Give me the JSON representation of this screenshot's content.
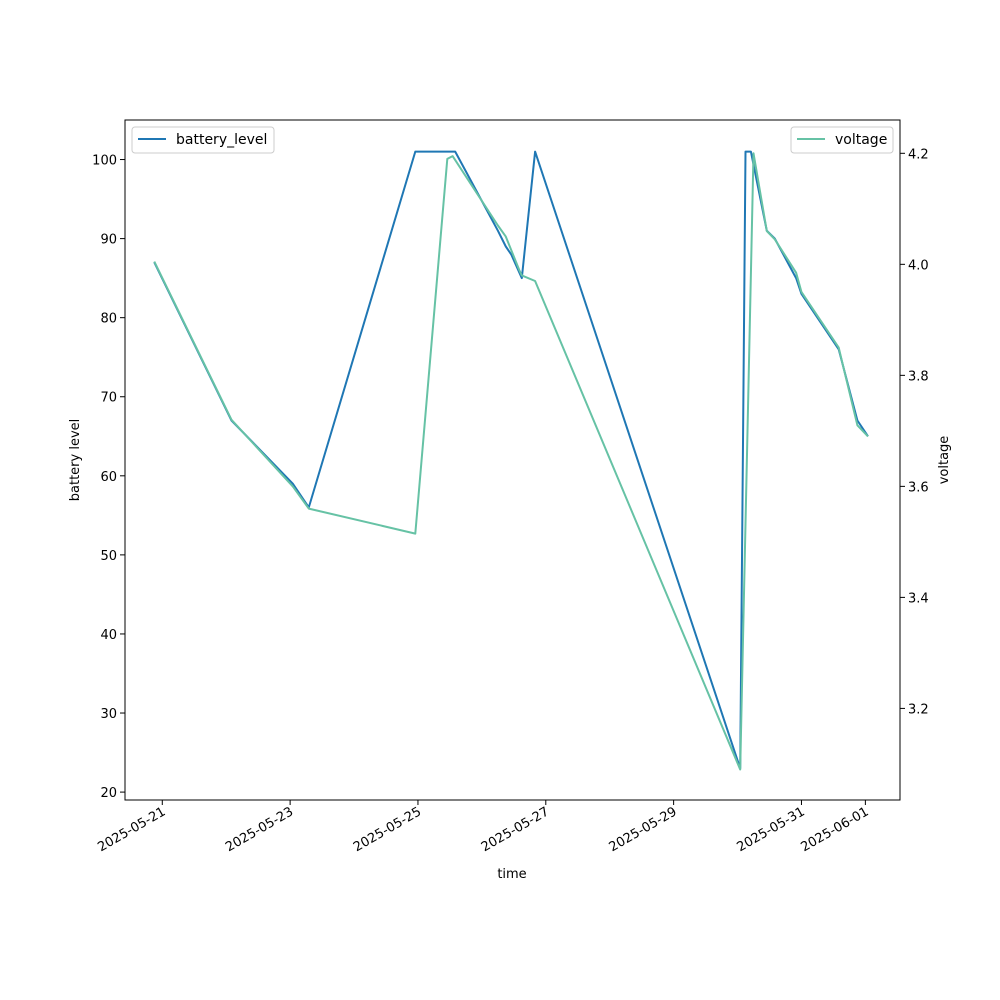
{
  "chart_data": {
    "type": "line",
    "xlabel": "time",
    "ylabel_left": "battery level",
    "ylabel_right": "voltage",
    "x_ticks": [
      "2025-05-21",
      "2025-05-23",
      "2025-05-25",
      "2025-05-27",
      "2025-05-29",
      "2025-05-31",
      "2025-06-01"
    ],
    "x_range": [
      "2025-05-20 10:00",
      "2025-06-01 13:00"
    ],
    "y_left_ticks": [
      20,
      30,
      40,
      50,
      60,
      70,
      80,
      90,
      100
    ],
    "y_left_range": [
      19,
      105
    ],
    "y_right_ticks": [
      3.2,
      3.4,
      3.6,
      3.8,
      4.0,
      4.2
    ],
    "y_right_range": [
      3.035,
      4.26
    ],
    "grid": false,
    "series": [
      {
        "name": "battery_level",
        "axis": "left",
        "color": "#1f77b4",
        "legend_position": "top-left",
        "points": [
          [
            "2025-05-20 21:00",
            87
          ],
          [
            "2025-05-22 02:00",
            67
          ],
          [
            "2025-05-23 01:00",
            59
          ],
          [
            "2025-05-23 07:00",
            56
          ],
          [
            "2025-05-24 23:00",
            101
          ],
          [
            "2025-05-25 14:00",
            101
          ],
          [
            "2025-05-26 06:00",
            91
          ],
          [
            "2025-05-26 09:00",
            89
          ],
          [
            "2025-05-26 11:00",
            88
          ],
          [
            "2025-05-26 15:00",
            85
          ],
          [
            "2025-05-26 20:00",
            101
          ],
          [
            "2025-05-30 01:00",
            23
          ],
          [
            "2025-05-30 03:00",
            101
          ],
          [
            "2025-05-30 05:00",
            101
          ],
          [
            "2025-05-30 11:00",
            91
          ],
          [
            "2025-05-30 14:00",
            90
          ],
          [
            "2025-05-30 22:00",
            85
          ],
          [
            "2025-05-31 00:00",
            83
          ],
          [
            "2025-05-31 14:00",
            76
          ],
          [
            "2025-05-31 21:00",
            67
          ],
          [
            "2025-06-01 01:00",
            65
          ]
        ]
      },
      {
        "name": "voltage",
        "axis": "right",
        "color": "#66c2a5",
        "legend_position": "top-right",
        "points": [
          [
            "2025-05-20 21:00",
            4.005
          ],
          [
            "2025-05-22 02:00",
            3.72
          ],
          [
            "2025-05-23 01:00",
            3.6
          ],
          [
            "2025-05-23 07:00",
            3.56
          ],
          [
            "2025-05-24 23:00",
            3.515
          ],
          [
            "2025-05-25 11:00",
            4.19
          ],
          [
            "2025-05-25 13:00",
            4.195
          ],
          [
            "2025-05-26 06:00",
            4.07
          ],
          [
            "2025-05-26 09:00",
            4.05
          ],
          [
            "2025-05-26 14:00",
            3.99
          ],
          [
            "2025-05-26 15:00",
            3.98
          ],
          [
            "2025-05-26 20:00",
            3.97
          ],
          [
            "2025-05-30 01:00",
            3.09
          ],
          [
            "2025-05-30 06:00",
            4.2
          ],
          [
            "2025-05-30 11:00",
            4.06
          ],
          [
            "2025-05-30 14:00",
            4.045
          ],
          [
            "2025-05-30 22:00",
            3.985
          ],
          [
            "2025-05-31 00:00",
            3.95
          ],
          [
            "2025-05-31 14:00",
            3.85
          ],
          [
            "2025-05-31 21:00",
            3.71
          ],
          [
            "2025-06-01 01:00",
            3.69
          ]
        ]
      }
    ]
  }
}
